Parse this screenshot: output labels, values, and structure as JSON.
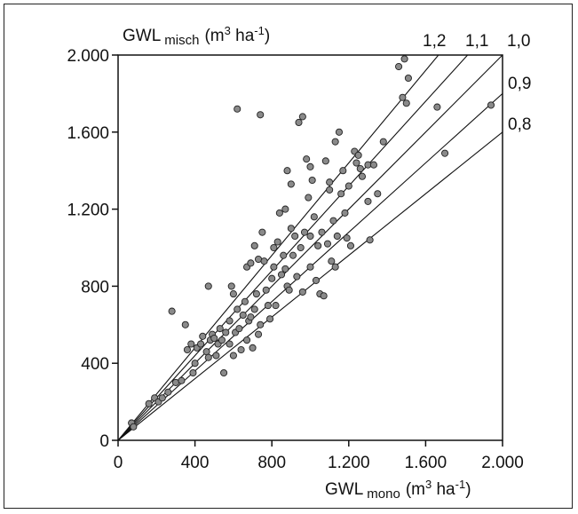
{
  "chart_data": {
    "type": "scatter",
    "xlabel": {
      "prefix": "GWL",
      "sub": "mono",
      "unit_open": "(m",
      "unit_sup": "3",
      "unit_rest": " ha",
      "unit_sup2": "-1",
      "unit_close": ")"
    },
    "ylabel": {
      "prefix": "GWL",
      "sub": "misch",
      "unit_open": "(m",
      "unit_sup": "3",
      "unit_rest": " ha",
      "unit_sup2": "-1",
      "unit_close": ")"
    },
    "xlim": [
      0,
      2000
    ],
    "ylim": [
      0,
      2000
    ],
    "x_ticks": [
      0,
      400,
      800,
      1200,
      1600,
      2000
    ],
    "x_tick_labels": [
      "0",
      "400",
      "800",
      "1.200",
      "1.600",
      "2.000"
    ],
    "y_ticks": [
      0,
      400,
      800,
      1200,
      1600,
      2000
    ],
    "y_tick_labels": [
      "0",
      "400",
      "800",
      "1.200",
      "1.600",
      "2.000"
    ],
    "grid": false,
    "reference_lines": [
      {
        "slope": 1.2,
        "label": "1,2"
      },
      {
        "slope": 1.1,
        "label": "1,1"
      },
      {
        "slope": 1.0,
        "label": "1,0"
      },
      {
        "slope": 0.9,
        "label": "0,9"
      },
      {
        "slope": 0.8,
        "label": "0,8"
      }
    ],
    "marker_color": "#8a8a8a",
    "points": [
      [
        70,
        90
      ],
      [
        80,
        70
      ],
      [
        160,
        190
      ],
      [
        190,
        220
      ],
      [
        210,
        200
      ],
      [
        230,
        220
      ],
      [
        260,
        250
      ],
      [
        280,
        670
      ],
      [
        300,
        300
      ],
      [
        330,
        310
      ],
      [
        350,
        600
      ],
      [
        360,
        470
      ],
      [
        380,
        500
      ],
      [
        390,
        350
      ],
      [
        400,
        400
      ],
      [
        410,
        480
      ],
      [
        430,
        500
      ],
      [
        440,
        540
      ],
      [
        460,
        460
      ],
      [
        470,
        800
      ],
      [
        470,
        430
      ],
      [
        480,
        520
      ],
      [
        490,
        550
      ],
      [
        500,
        530
      ],
      [
        510,
        440
      ],
      [
        520,
        500
      ],
      [
        530,
        580
      ],
      [
        540,
        520
      ],
      [
        550,
        350
      ],
      [
        560,
        560
      ],
      [
        580,
        500
      ],
      [
        580,
        620
      ],
      [
        590,
        800
      ],
      [
        600,
        760
      ],
      [
        600,
        440
      ],
      [
        610,
        560
      ],
      [
        620,
        680
      ],
      [
        620,
        1720
      ],
      [
        630,
        580
      ],
      [
        640,
        470
      ],
      [
        650,
        650
      ],
      [
        660,
        720
      ],
      [
        670,
        520
      ],
      [
        670,
        900
      ],
      [
        680,
        620
      ],
      [
        690,
        640
      ],
      [
        690,
        920
      ],
      [
        700,
        480
      ],
      [
        710,
        1010
      ],
      [
        710,
        680
      ],
      [
        720,
        760
      ],
      [
        730,
        550
      ],
      [
        730,
        940
      ],
      [
        740,
        600
      ],
      [
        740,
        1690
      ],
      [
        750,
        1080
      ],
      [
        760,
        930
      ],
      [
        770,
        780
      ],
      [
        780,
        700
      ],
      [
        790,
        630
      ],
      [
        800,
        840
      ],
      [
        810,
        1000
      ],
      [
        810,
        900
      ],
      [
        820,
        700
      ],
      [
        830,
        1030
      ],
      [
        840,
        1180
      ],
      [
        850,
        860
      ],
      [
        860,
        960
      ],
      [
        870,
        1200
      ],
      [
        870,
        890
      ],
      [
        880,
        800
      ],
      [
        890,
        780
      ],
      [
        900,
        1330
      ],
      [
        900,
        1100
      ],
      [
        910,
        960
      ],
      [
        920,
        1060
      ],
      [
        930,
        850
      ],
      [
        940,
        1650
      ],
      [
        950,
        1000
      ],
      [
        960,
        770
      ],
      [
        970,
        1080
      ],
      [
        980,
        1460
      ],
      [
        990,
        1260
      ],
      [
        1000,
        900
      ],
      [
        1000,
        1060
      ],
      [
        1010,
        1350
      ],
      [
        1020,
        1160
      ],
      [
        1030,
        830
      ],
      [
        1040,
        1010
      ],
      [
        1050,
        760
      ],
      [
        1060,
        1080
      ],
      [
        1070,
        750
      ],
      [
        1080,
        1450
      ],
      [
        1090,
        1020
      ],
      [
        1100,
        1300
      ],
      [
        1110,
        930
      ],
      [
        1120,
        1140
      ],
      [
        1130,
        1550
      ],
      [
        1140,
        1060
      ],
      [
        1150,
        1600
      ],
      [
        1160,
        1280
      ],
      [
        1170,
        1400
      ],
      [
        1180,
        1180
      ],
      [
        1190,
        1050
      ],
      [
        1200,
        1320
      ],
      [
        1210,
        1010
      ],
      [
        1230,
        1500
      ],
      [
        1240,
        1440
      ],
      [
        1250,
        1480
      ],
      [
        1260,
        1410
      ],
      [
        1270,
        1370
      ],
      [
        1300,
        1430
      ],
      [
        1300,
        1240
      ],
      [
        1310,
        1040
      ],
      [
        1330,
        1430
      ],
      [
        1350,
        1280
      ],
      [
        1380,
        1550
      ],
      [
        1460,
        1940
      ],
      [
        1480,
        1780
      ],
      [
        1490,
        1980
      ],
      [
        1500,
        1750
      ],
      [
        1510,
        1880
      ],
      [
        1660,
        1730
      ],
      [
        1700,
        1490
      ],
      [
        1940,
        1740
      ],
      [
        1000,
        1420
      ],
      [
        1130,
        900
      ],
      [
        1100,
        1340
      ],
      [
        960,
        1680
      ],
      [
        880,
        1400
      ]
    ]
  }
}
